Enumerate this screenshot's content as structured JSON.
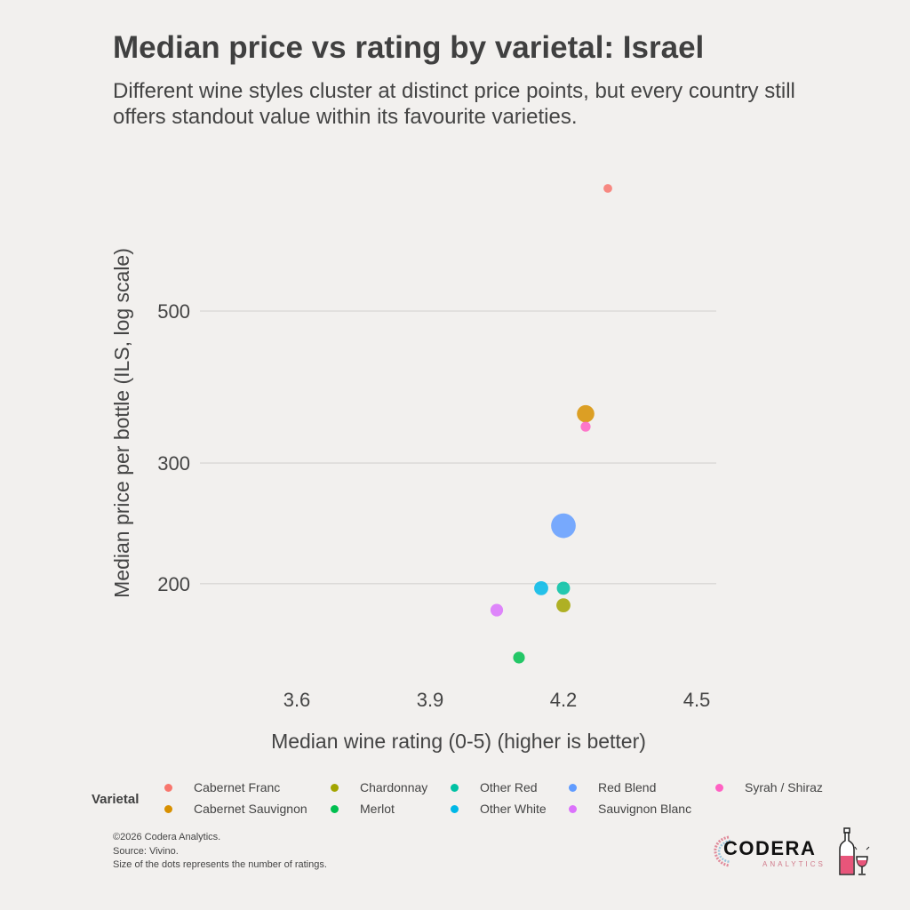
{
  "title": "Median price vs rating by varietal: Israel",
  "subtitle": "Different wine styles cluster at distinct price points, but every country still offers standout value within its favourite varieties.",
  "chart_data": {
    "type": "scatter",
    "title": "Median price vs rating by varietal: Israel",
    "xlabel": "Median wine rating (0-5) (higher is better)",
    "ylabel": "Median price per bottle (ILS, log scale)",
    "xlim": [
      3.41,
      4.54
    ],
    "ylim": [
      150,
      800
    ],
    "yscale": "log",
    "xticks": [
      3.6,
      3.9,
      4.2,
      4.5
    ],
    "xtick_labels": [
      "3.6",
      "3.9",
      "4.2",
      "4.5"
    ],
    "yticks": [
      200,
      300,
      500
    ],
    "ytick_labels": [
      "200",
      "300",
      "500"
    ],
    "grid": "horizontal-major",
    "legend": {
      "title": "Varietal",
      "placement": "bottom"
    },
    "size_encoding": "number of ratings (relative)",
    "series": [
      {
        "name": "Cabernet Franc",
        "color": "#f8766d",
        "x": 4.3,
        "y": 755,
        "size": 1
      },
      {
        "name": "Cabernet Sauvignon",
        "color": "#d89000",
        "x": 4.25,
        "y": 354,
        "size": 4
      },
      {
        "name": "Chardonnay",
        "color": "#a3a500",
        "x": 4.2,
        "y": 186,
        "size": 2.6
      },
      {
        "name": "Merlot",
        "color": "#00bf4f",
        "x": 4.1,
        "y": 156,
        "size": 1.8
      },
      {
        "name": "Other Red",
        "color": "#00c1a3",
        "x": 4.2,
        "y": 197,
        "size": 2.3
      },
      {
        "name": "Other White",
        "color": "#00b8e7",
        "x": 4.15,
        "y": 197,
        "size": 2.6
      },
      {
        "name": "Red Blend",
        "color": "#619cff",
        "x": 4.2,
        "y": 243,
        "size": 8
      },
      {
        "name": "Sauvignon Blanc",
        "color": "#db72fb",
        "x": 4.05,
        "y": 183,
        "size": 2.1
      },
      {
        "name": "Syrah / Shiraz",
        "color": "#ff61c3",
        "x": 4.25,
        "y": 339,
        "size": 1.3
      }
    ]
  },
  "legend": {
    "title": "Varietal",
    "items": [
      {
        "label": "Cabernet Franc",
        "color": "#f8766d"
      },
      {
        "label": "Cabernet Sauvignon",
        "color": "#d89000"
      },
      {
        "label": "Chardonnay",
        "color": "#a3a500"
      },
      {
        "label": "Merlot",
        "color": "#00bf4f"
      },
      {
        "label": "Other Red",
        "color": "#00c1a3"
      },
      {
        "label": "Other White",
        "color": "#00b8e7"
      },
      {
        "label": "Red Blend",
        "color": "#619cff"
      },
      {
        "label": "Sauvignon Blanc",
        "color": "#db72fb"
      },
      {
        "label": "Syrah / Shiraz",
        "color": "#ff61c3"
      }
    ]
  },
  "footer": {
    "copyright": "©2026 Codera Analytics.",
    "source": "Source: Vivino.",
    "note": "Size of the dots represents the number of ratings."
  },
  "logo": {
    "name": "CODERA",
    "sub": "ANALYTICS",
    "icon": "wine-bottle-glass-icon"
  }
}
